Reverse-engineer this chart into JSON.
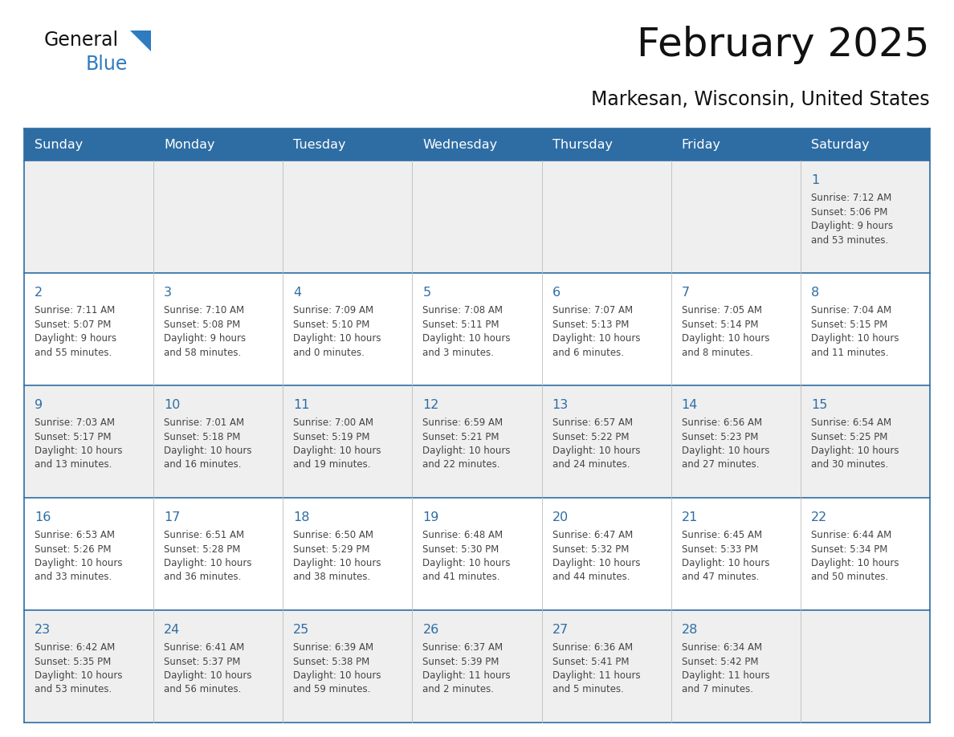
{
  "title": "February 2025",
  "subtitle": "Markesan, Wisconsin, United States",
  "header_bg": "#2E6DA4",
  "header_text_color": "#FFFFFF",
  "cell_bg_odd": "#EFEFEF",
  "cell_bg_even": "#FFFFFF",
  "day_number_color": "#2E6DA4",
  "info_text_color": "#444444",
  "border_color": "#2E6DA4",
  "grid_line_color": "#BBBBBB",
  "days_of_week": [
    "Sunday",
    "Monday",
    "Tuesday",
    "Wednesday",
    "Thursday",
    "Friday",
    "Saturday"
  ],
  "weeks": [
    [
      {
        "day": "",
        "info": ""
      },
      {
        "day": "",
        "info": ""
      },
      {
        "day": "",
        "info": ""
      },
      {
        "day": "",
        "info": ""
      },
      {
        "day": "",
        "info": ""
      },
      {
        "day": "",
        "info": ""
      },
      {
        "day": "1",
        "info": "Sunrise: 7:12 AM\nSunset: 5:06 PM\nDaylight: 9 hours\nand 53 minutes."
      }
    ],
    [
      {
        "day": "2",
        "info": "Sunrise: 7:11 AM\nSunset: 5:07 PM\nDaylight: 9 hours\nand 55 minutes."
      },
      {
        "day": "3",
        "info": "Sunrise: 7:10 AM\nSunset: 5:08 PM\nDaylight: 9 hours\nand 58 minutes."
      },
      {
        "day": "4",
        "info": "Sunrise: 7:09 AM\nSunset: 5:10 PM\nDaylight: 10 hours\nand 0 minutes."
      },
      {
        "day": "5",
        "info": "Sunrise: 7:08 AM\nSunset: 5:11 PM\nDaylight: 10 hours\nand 3 minutes."
      },
      {
        "day": "6",
        "info": "Sunrise: 7:07 AM\nSunset: 5:13 PM\nDaylight: 10 hours\nand 6 minutes."
      },
      {
        "day": "7",
        "info": "Sunrise: 7:05 AM\nSunset: 5:14 PM\nDaylight: 10 hours\nand 8 minutes."
      },
      {
        "day": "8",
        "info": "Sunrise: 7:04 AM\nSunset: 5:15 PM\nDaylight: 10 hours\nand 11 minutes."
      }
    ],
    [
      {
        "day": "9",
        "info": "Sunrise: 7:03 AM\nSunset: 5:17 PM\nDaylight: 10 hours\nand 13 minutes."
      },
      {
        "day": "10",
        "info": "Sunrise: 7:01 AM\nSunset: 5:18 PM\nDaylight: 10 hours\nand 16 minutes."
      },
      {
        "day": "11",
        "info": "Sunrise: 7:00 AM\nSunset: 5:19 PM\nDaylight: 10 hours\nand 19 minutes."
      },
      {
        "day": "12",
        "info": "Sunrise: 6:59 AM\nSunset: 5:21 PM\nDaylight: 10 hours\nand 22 minutes."
      },
      {
        "day": "13",
        "info": "Sunrise: 6:57 AM\nSunset: 5:22 PM\nDaylight: 10 hours\nand 24 minutes."
      },
      {
        "day": "14",
        "info": "Sunrise: 6:56 AM\nSunset: 5:23 PM\nDaylight: 10 hours\nand 27 minutes."
      },
      {
        "day": "15",
        "info": "Sunrise: 6:54 AM\nSunset: 5:25 PM\nDaylight: 10 hours\nand 30 minutes."
      }
    ],
    [
      {
        "day": "16",
        "info": "Sunrise: 6:53 AM\nSunset: 5:26 PM\nDaylight: 10 hours\nand 33 minutes."
      },
      {
        "day": "17",
        "info": "Sunrise: 6:51 AM\nSunset: 5:28 PM\nDaylight: 10 hours\nand 36 minutes."
      },
      {
        "day": "18",
        "info": "Sunrise: 6:50 AM\nSunset: 5:29 PM\nDaylight: 10 hours\nand 38 minutes."
      },
      {
        "day": "19",
        "info": "Sunrise: 6:48 AM\nSunset: 5:30 PM\nDaylight: 10 hours\nand 41 minutes."
      },
      {
        "day": "20",
        "info": "Sunrise: 6:47 AM\nSunset: 5:32 PM\nDaylight: 10 hours\nand 44 minutes."
      },
      {
        "day": "21",
        "info": "Sunrise: 6:45 AM\nSunset: 5:33 PM\nDaylight: 10 hours\nand 47 minutes."
      },
      {
        "day": "22",
        "info": "Sunrise: 6:44 AM\nSunset: 5:34 PM\nDaylight: 10 hours\nand 50 minutes."
      }
    ],
    [
      {
        "day": "23",
        "info": "Sunrise: 6:42 AM\nSunset: 5:35 PM\nDaylight: 10 hours\nand 53 minutes."
      },
      {
        "day": "24",
        "info": "Sunrise: 6:41 AM\nSunset: 5:37 PM\nDaylight: 10 hours\nand 56 minutes."
      },
      {
        "day": "25",
        "info": "Sunrise: 6:39 AM\nSunset: 5:38 PM\nDaylight: 10 hours\nand 59 minutes."
      },
      {
        "day": "26",
        "info": "Sunrise: 6:37 AM\nSunset: 5:39 PM\nDaylight: 11 hours\nand 2 minutes."
      },
      {
        "day": "27",
        "info": "Sunrise: 6:36 AM\nSunset: 5:41 PM\nDaylight: 11 hours\nand 5 minutes."
      },
      {
        "day": "28",
        "info": "Sunrise: 6:34 AM\nSunset: 5:42 PM\nDaylight: 11 hours\nand 7 minutes."
      },
      {
        "day": "",
        "info": ""
      }
    ]
  ],
  "logo_text1": "General",
  "logo_text2": "Blue",
  "logo_color1": "#111111",
  "logo_color2": "#2E7BBF",
  "logo_triangle_color": "#2E7BBF",
  "title_fontsize": 36,
  "subtitle_fontsize": 17,
  "header_fontsize": 11.5,
  "day_num_fontsize": 11.5,
  "info_fontsize": 8.5
}
